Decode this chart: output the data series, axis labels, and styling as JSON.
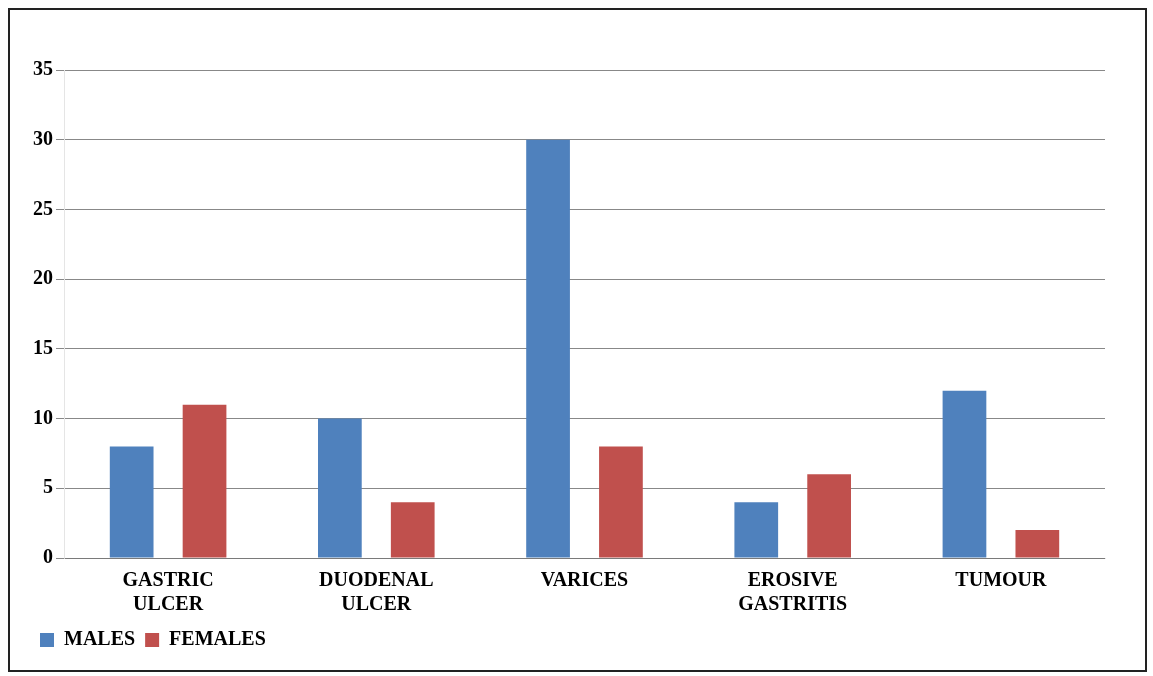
{
  "chart_data": {
    "type": "bar",
    "categories": [
      "GASTRIC ULCER",
      "DUODENAL ULCER",
      "VARICES",
      "EROSIVE GASTRITIS",
      "TUMOUR"
    ],
    "series": [
      {
        "name": "MALES",
        "color": "#4f81bd",
        "values": [
          8,
          10,
          30,
          4,
          12
        ]
      },
      {
        "name": "FEMALES",
        "color": "#c0504d",
        "values": [
          11,
          4,
          8,
          6,
          2
        ]
      }
    ],
    "ylim": [
      0,
      35
    ],
    "yticks": [
      0,
      5,
      10,
      15,
      20,
      25,
      30,
      35
    ],
    "grid": "y",
    "legend": "bottom left"
  }
}
